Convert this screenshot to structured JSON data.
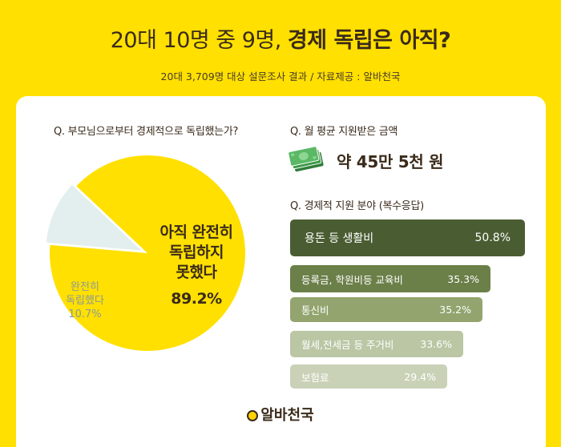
{
  "header": {
    "title_light": "20대 10명 중 9명,",
    "title_bold": "경제 독립은 아직?",
    "subtitle": "20대 3,709명 대상 설문조사 결과 / 자료제공 : 알바천국"
  },
  "questions": {
    "q1": "Q. 부모님으로부터 경제적으로 독립했는가?",
    "q2": "Q. 월 평균 지원받은 금액",
    "q3": "Q. 경제적 지원 분야 (복수응답)"
  },
  "monthly_support": {
    "amount": "약 45만 5천 원",
    "icon": "money-bills-icon"
  },
  "pie_labels": {
    "not_line1": "아직 완전히",
    "not_line2": "독립하지",
    "not_line3": "못했다",
    "not_value": "89.2%",
    "yes_line1": "완전히",
    "yes_line2": "독립했다",
    "yes_value": "10.7%"
  },
  "bar_labels": {
    "b0": "용돈 등 생활비",
    "b1": "등록금, 학원비등 교육비",
    "b2": "통신비",
    "b3": "월세,전세금 등 주거비",
    "b4": "보험료",
    "v0": "50.8%",
    "v1": "35.3%",
    "v2": "35.2%",
    "v3": "33.6%",
    "v4": "29.4%"
  },
  "footer": {
    "logo_text": "알바천국"
  },
  "colors": {
    "background": "#FFE000",
    "pie_main": "#FFE000",
    "pie_minor": "#E3EEEE",
    "bars": [
      "#4A5D32",
      "#6B7F48",
      "#93A46F",
      "#BAC6A4",
      "#C9D2B7"
    ]
  },
  "chart_data": [
    {
      "type": "pie",
      "categories": [
        "아직 완전히 독립하지 못했다",
        "완전히 독립했다"
      ],
      "values": [
        89.2,
        10.7
      ],
      "title": "Q. 부모님으로부터 경제적으로 독립했는가?"
    },
    {
      "type": "bar",
      "orientation": "horizontal",
      "categories": [
        "용돈 등 생활비",
        "등록금, 학원비등 교육비",
        "통신비",
        "월세,전세금 등 주거비",
        "보험료"
      ],
      "values": [
        50.8,
        35.3,
        35.2,
        33.6,
        29.4
      ],
      "title": "Q. 경제적 지원 분야 (복수응답)"
    }
  ]
}
